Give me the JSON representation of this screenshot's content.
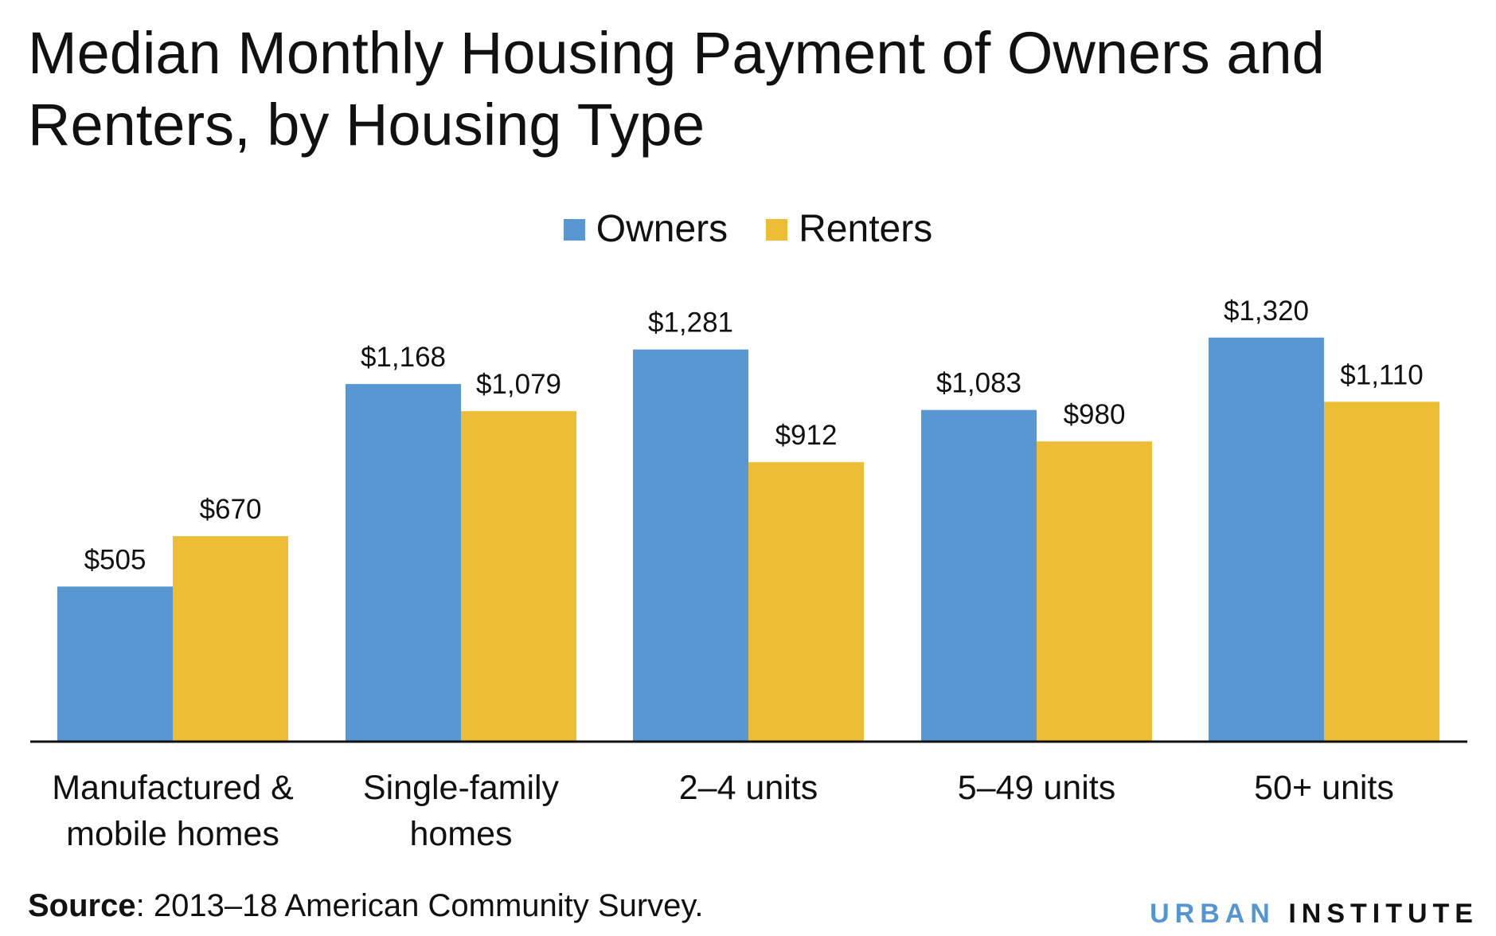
{
  "title": "Median Monthly Housing Payment of Owners and Renters, by Housing Type",
  "legend": [
    {
      "label": "Owners",
      "color": "#5897d1"
    },
    {
      "label": "Renters",
      "color": "#ecbd35"
    }
  ],
  "source": {
    "label": "Source",
    "text": ": 2013–18 American Community Survey."
  },
  "brand": {
    "word1": "URBAN",
    "word2": "INSTITUTE",
    "word1_color": "#5596d0"
  },
  "chart_data": {
    "type": "bar",
    "title": "Median Monthly Housing Payment of Owners and Renters, by Housing Type",
    "categories": [
      [
        "Manufactured &",
        "mobile homes"
      ],
      [
        "Single-family",
        "homes"
      ],
      [
        "2–4 units"
      ],
      [
        "5–49 units"
      ],
      [
        "50+ units"
      ]
    ],
    "series": [
      {
        "name": "Owners",
        "color": "#5897d1",
        "values": [
          505,
          1168,
          1281,
          1083,
          1320
        ],
        "labels": [
          "$505",
          "$1,168",
          "$1,281",
          "$1,083",
          "$1,320"
        ]
      },
      {
        "name": "Renters",
        "color": "#ecbd35",
        "values": [
          670,
          1079,
          912,
          980,
          1110
        ],
        "labels": [
          "$670",
          "$1,079",
          "$912",
          "$980",
          "$1,110"
        ]
      }
    ],
    "ylim": [
      0,
      1320
    ],
    "grid": false,
    "legend_position": "top-center"
  }
}
